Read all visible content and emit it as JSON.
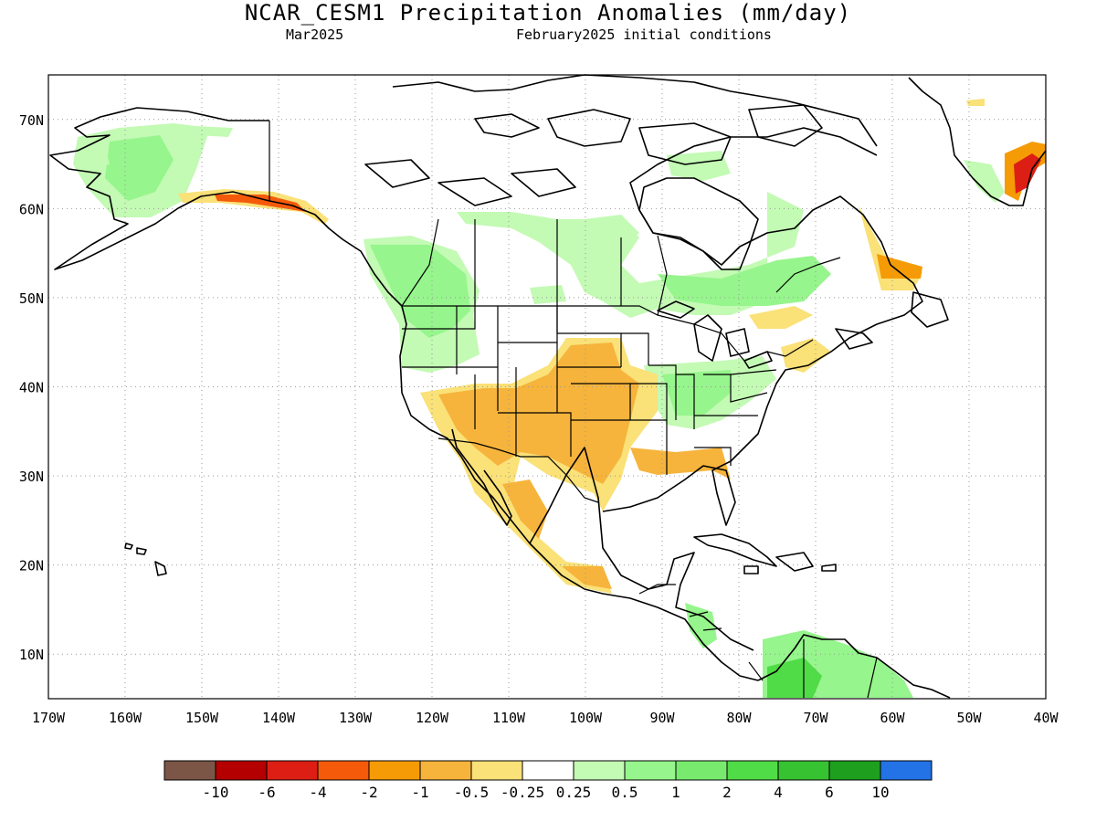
{
  "header": {
    "title": "NCAR_CESM1 Precipitation Anomalies (mm/day)",
    "subtitle_left": "Mar2025",
    "subtitle_right": "February2025 initial conditions"
  },
  "map": {
    "lon_range": [
      -170,
      -40
    ],
    "lat_range": [
      5,
      75
    ],
    "gridlines": "dotted",
    "lat_labels": [
      "10N",
      "20N",
      "30N",
      "40N",
      "50N",
      "60N",
      "70N"
    ],
    "lon_labels": [
      "170W",
      "160W",
      "150W",
      "140W",
      "130W",
      "120W",
      "110W",
      "100W",
      "90W",
      "80W",
      "70W",
      "60W",
      "50W",
      "40W"
    ]
  },
  "colors": {
    "below": [
      "#7b5647",
      "#b40000",
      "#dc1e14",
      "#f55a0a",
      "#f59b05",
      "#f6b43c",
      "#fae178"
    ],
    "neutral": "#ffffff",
    "above": [
      "#c3fab4",
      "#96f58c",
      "#78eb6e",
      "#50dc46",
      "#37c232",
      "#1ea01e",
      "#2473e6"
    ]
  },
  "colorbar": {
    "labels": [
      "-10",
      "-6",
      "-4",
      "-2",
      "-1",
      "-0.5",
      "-0.25",
      "0.25",
      "0.5",
      "1",
      "2",
      "4",
      "6",
      "10"
    ]
  }
}
